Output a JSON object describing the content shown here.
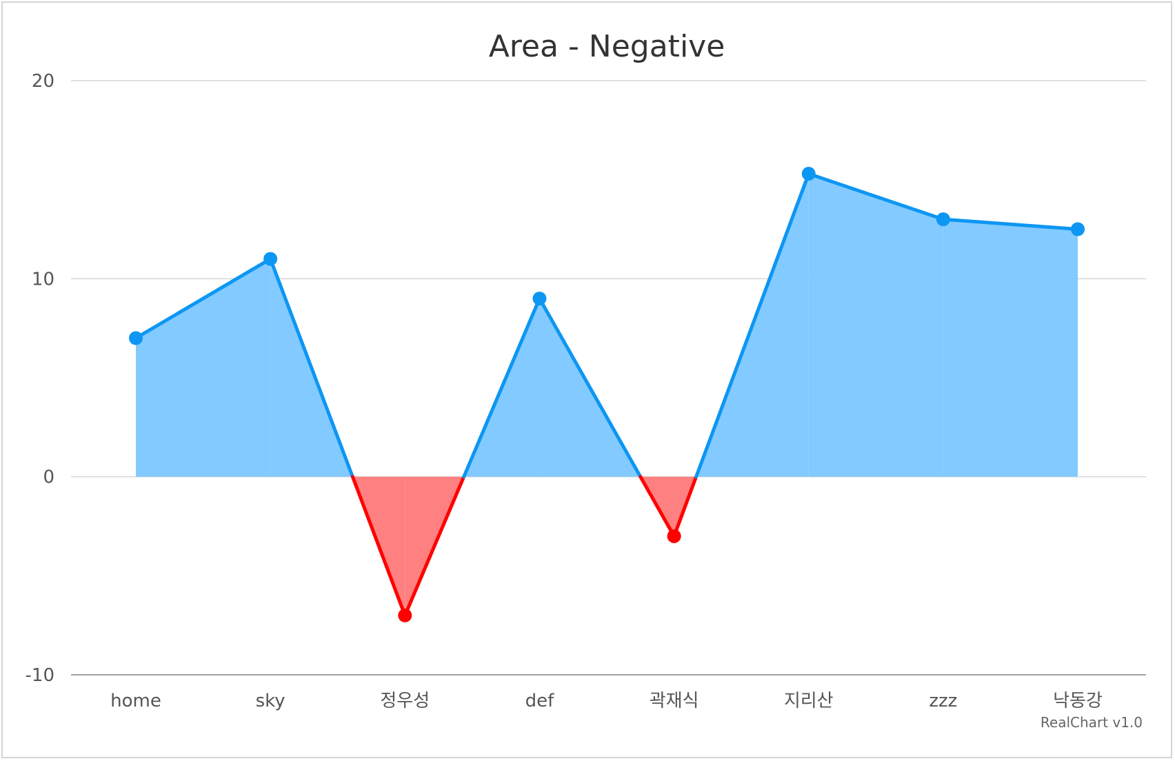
{
  "chart_data": {
    "type": "area",
    "title": "Area - Negative",
    "xlabel": "",
    "ylabel": "",
    "categories": [
      "home",
      "sky",
      "정우성",
      "def",
      "곽재식",
      "지리산",
      "zzz",
      "낙동강"
    ],
    "values": [
      7,
      11,
      -7,
      9,
      -3,
      15.3,
      13,
      12.5
    ],
    "ylim": [
      -10,
      20
    ],
    "yticks": [
      -10,
      0,
      10,
      20
    ],
    "grid": true,
    "legend": "none",
    "colors": {
      "positive_line": "#0d96f2",
      "positive_fill": "#82caff",
      "negative_line": "#ff0000",
      "negative_fill": "#ff8080",
      "grid": "#d6d6d6",
      "axis": "#a0a0a0"
    }
  },
  "credit": "RealChart v1.0"
}
